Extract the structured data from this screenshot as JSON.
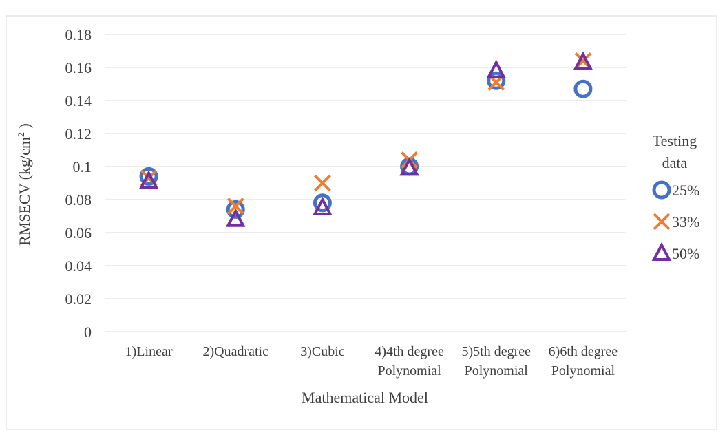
{
  "chart_data": {
    "type": "scatter",
    "title": "",
    "xlabel": "Mathematical Model",
    "ylabel": "RMSECV (kg/cm",
    "ylabel_sup": "2",
    "ylabel_end": " )",
    "categories": [
      [
        "1)Linear"
      ],
      [
        "2)Quadratic"
      ],
      [
        "3)Cubic"
      ],
      [
        "4)4th degree",
        "Polynomial"
      ],
      [
        "5)5th degree",
        "Polynomial"
      ],
      [
        "6)6th degree",
        "Polynomial"
      ]
    ],
    "y_ticks": [
      "0",
      "0.02",
      "0.04",
      "0.06",
      "0.08",
      "0.1",
      "0.12",
      "0.14",
      "0.16",
      "0.18"
    ],
    "ylim": [
      0,
      0.18
    ],
    "grid": true,
    "legend_title": [
      "Testing",
      "data"
    ],
    "legend_position": "right",
    "series": [
      {
        "name": "25%",
        "marker": "circle",
        "color": "#4472C4",
        "values": [
          0.094,
          0.074,
          0.078,
          0.1,
          0.152,
          0.147
        ]
      },
      {
        "name": "33%",
        "marker": "x",
        "color": "#ED7D31",
        "values": [
          0.093,
          0.076,
          0.09,
          0.104,
          0.151,
          0.164
        ]
      },
      {
        "name": "50%",
        "marker": "triangle",
        "color": "#7030A0",
        "values": [
          0.091,
          0.068,
          0.075,
          0.099,
          0.158,
          0.163
        ]
      }
    ]
  }
}
